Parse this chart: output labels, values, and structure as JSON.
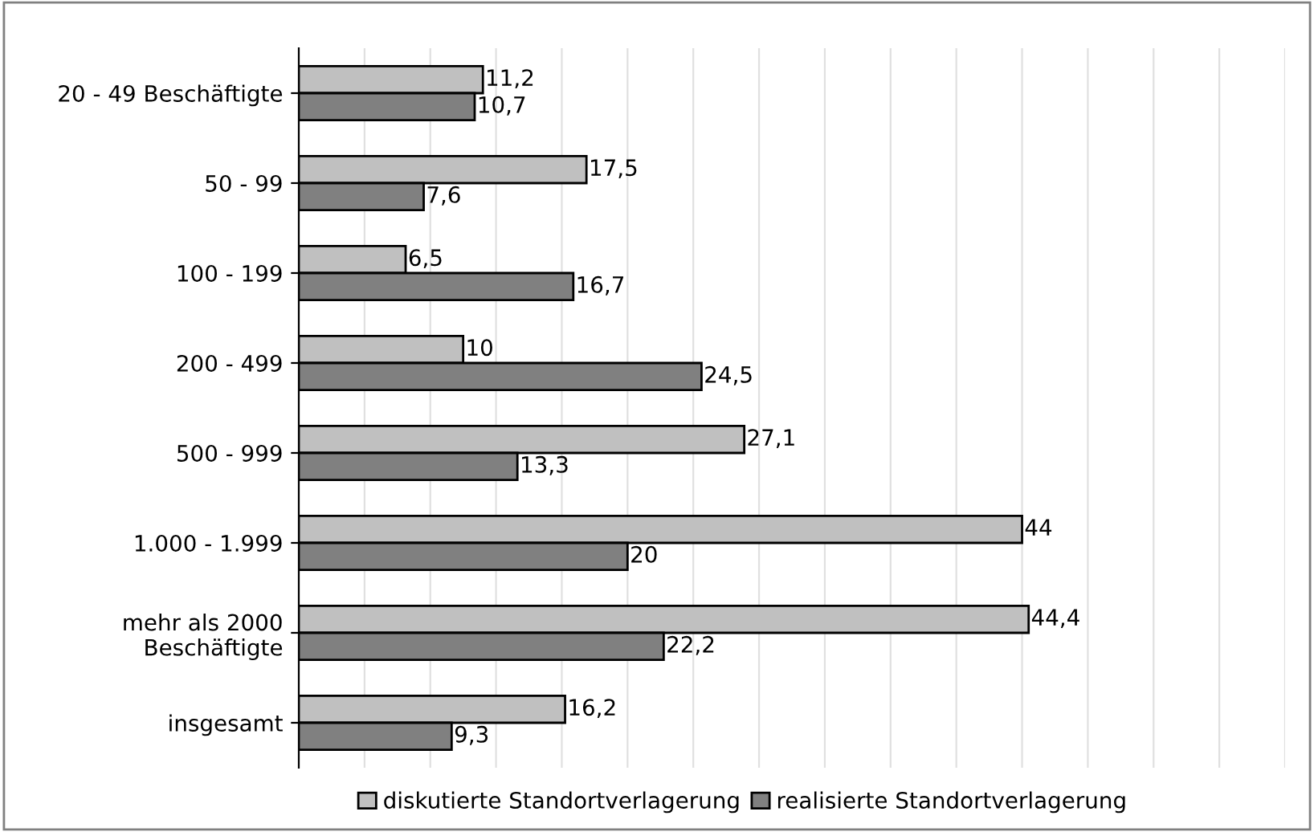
{
  "chart_data": {
    "type": "bar",
    "orientation": "horizontal",
    "categories": [
      "20 - 49 Beschäftigte",
      "50 - 99",
      "100 - 199",
      "200 - 499",
      "500 - 999",
      "1.000 - 1.999",
      "mehr als 2000\nBeschäftigte",
      "insgesamt"
    ],
    "series": [
      {
        "name": "diskutierte Standortverlagerung",
        "color": "#c0c0c0",
        "values": [
          11.2,
          17.5,
          6.5,
          10,
          27.1,
          44,
          44.4,
          16.2
        ],
        "value_labels": [
          "11,2",
          "17,5",
          "6,5",
          "10",
          "27,1",
          "44",
          "44,4",
          "16,2"
        ]
      },
      {
        "name": "realisierte Standortverlagerung",
        "color": "#808080",
        "values": [
          10.7,
          7.6,
          16.7,
          24.5,
          13.3,
          20,
          22.2,
          9.3
        ],
        "value_labels": [
          "10,7",
          "7,6",
          "16,7",
          "24,5",
          "13,3",
          "20",
          "22,2",
          "9,3"
        ]
      }
    ],
    "xlim": [
      0,
      60
    ],
    "xticks": [
      {
        "value": 0,
        "label": null
      },
      {
        "value": 4,
        "label": null
      },
      {
        "value": 8,
        "label": null
      },
      {
        "value": 12,
        "label": null
      },
      {
        "value": 16,
        "label": null
      },
      {
        "value": 20,
        "label": null
      },
      {
        "value": 24,
        "label": null
      },
      {
        "value": 28,
        "label": null
      },
      {
        "value": 32,
        "label": null
      },
      {
        "value": 36,
        "label": null
      },
      {
        "value": 40,
        "label": null
      },
      {
        "value": 44,
        "label": null
      },
      {
        "value": 48,
        "label": null
      },
      {
        "value": 52,
        "label": null
      },
      {
        "value": 56,
        "label": null
      },
      {
        "value": 60,
        "label": null
      }
    ],
    "grid": "x",
    "legend": "bottom"
  }
}
